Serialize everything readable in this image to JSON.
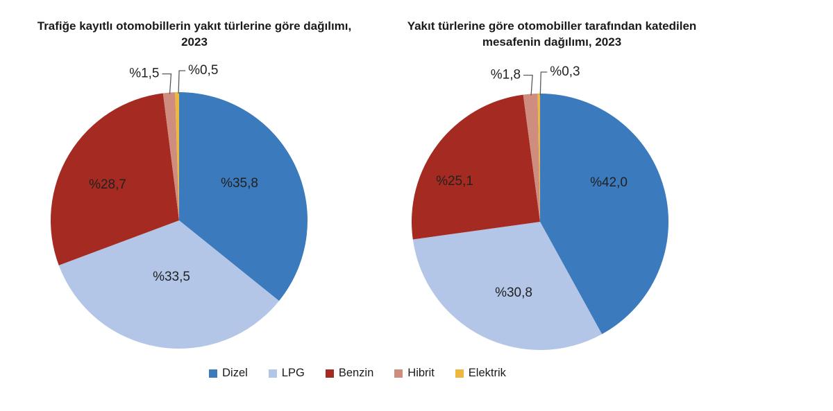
{
  "page": {
    "background": "#ffffff"
  },
  "text_colors": {
    "title": "#1a1a1a",
    "data_label": "#212121",
    "leader_line": "#595959"
  },
  "chart_data": [
    {
      "type": "pie",
      "title": "Trafiğe kayıtlı otomobillerin yakıt türlerine göre dağılımı, 2023",
      "categories": [
        "Dizel",
        "LPG",
        "Benzin",
        "Hibrit",
        "Elektrik"
      ],
      "values": [
        35.8,
        33.5,
        28.7,
        1.5,
        0.5
      ],
      "labels": [
        "%35,8",
        "%33,5",
        "%28,7",
        "%1,5",
        "%0,5"
      ],
      "colors": [
        "#3b7abc",
        "#b3c6e7",
        "#a52a21",
        "#cf8d80",
        "#edb83d"
      ],
      "start_angle_deg": 0,
      "direction": "clockwise",
      "legend_position": "bottom-shared"
    },
    {
      "type": "pie",
      "title": "Yakıt türlerine göre otomobiller tarafından katedilen mesafenin dağılımı, 2023",
      "categories": [
        "Dizel",
        "LPG",
        "Benzin",
        "Hibrit",
        "Elektrik"
      ],
      "values": [
        42.0,
        30.8,
        25.1,
        1.8,
        0.3
      ],
      "labels": [
        "%42,0",
        "%30,8",
        "%25,1",
        "%1,8",
        "%0,3"
      ],
      "colors": [
        "#3b7abc",
        "#b3c6e7",
        "#a52a21",
        "#cf8d80",
        "#edb83d"
      ],
      "start_angle_deg": 0,
      "direction": "clockwise",
      "legend_position": "bottom-shared"
    }
  ],
  "legend": {
    "position": "bottom-center",
    "items": [
      {
        "label": "Dizel",
        "color": "#3b7abc"
      },
      {
        "label": "LPG",
        "color": "#b3c6e7"
      },
      {
        "label": "Benzin",
        "color": "#a52a21"
      },
      {
        "label": "Hibrit",
        "color": "#cf8d80"
      },
      {
        "label": "Elektrik",
        "color": "#edb83d"
      }
    ]
  }
}
